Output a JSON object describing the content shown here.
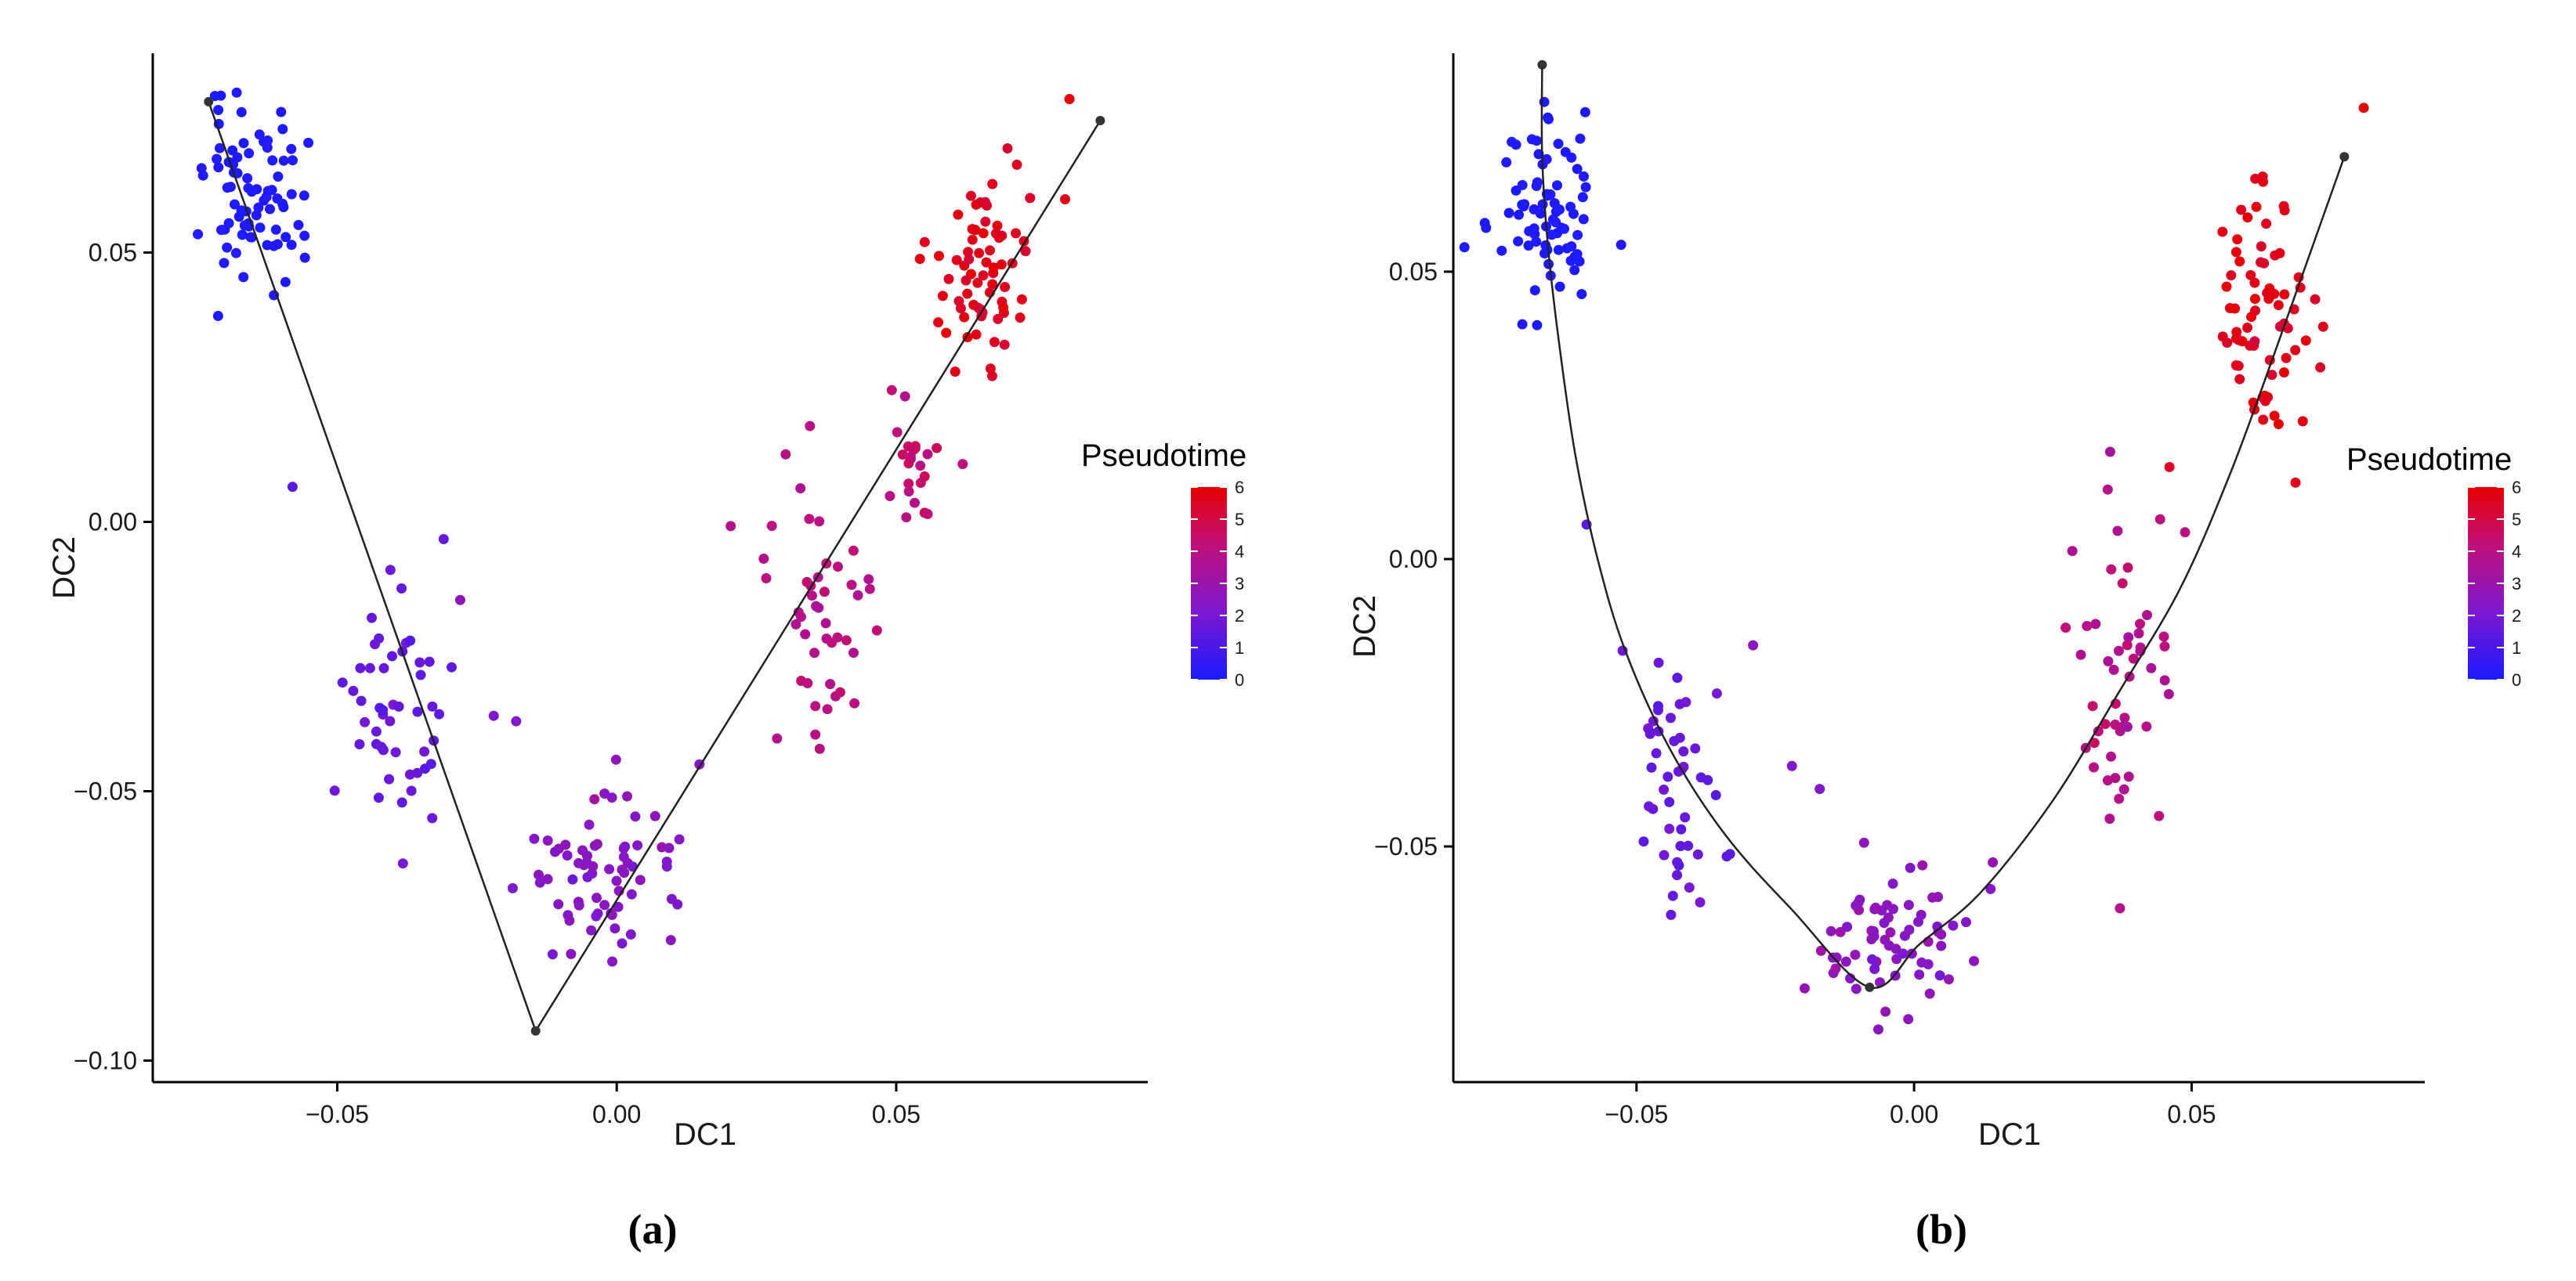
{
  "colors": {
    "low": "#1a1aff",
    "mid": "#8a14c8",
    "high": "#e60000",
    "curve": "#222222",
    "node": "#333333"
  },
  "chart_data": [
    {
      "type": "scatter",
      "panel_label": "(a)",
      "xlabel": "DC1",
      "ylabel": "DC2",
      "xlim": [
        -0.083,
        0.095
      ],
      "ylim": [
        -0.104,
        0.087
      ],
      "x_ticks": [
        -0.05,
        0.0,
        0.05
      ],
      "x_tick_labels": [
        "−0.05",
        "0.00",
        "0.05"
      ],
      "y_ticks": [
        -0.1,
        -0.05,
        0.0,
        0.05
      ],
      "y_tick_labels": [
        "−0.10",
        "−0.05",
        "0.00",
        "0.05"
      ],
      "grid": false,
      "legend": {
        "title": "Pseudotime",
        "min": 0,
        "max": 6,
        "ticks": [
          "0",
          "1",
          "2",
          "3",
          "4",
          "5",
          "6"
        ],
        "placement": "right"
      },
      "trajectory": {
        "kind": "polyline",
        "nodes": [
          [
            -0.073,
            0.078
          ],
          [
            -0.0145,
            -0.0945
          ],
          [
            0.0865,
            0.0745
          ]
        ]
      },
      "clusters": [
        {
          "cx": -0.065,
          "cy": 0.061,
          "sx": 0.0045,
          "sy": 0.008,
          "n": 80,
          "pt": 0.1,
          "pt_sd": 0.05
        },
        {
          "cx": -0.039,
          "cy": -0.034,
          "sx": 0.0045,
          "sy": 0.011,
          "n": 48,
          "pt": 1.6,
          "pt_sd": 0.2
        },
        {
          "cx": -0.003,
          "cy": -0.066,
          "sx": 0.0075,
          "sy": 0.007,
          "n": 70,
          "pt": 2.4,
          "pt_sd": 0.25
        },
        {
          "cx": 0.036,
          "cy": -0.018,
          "sx": 0.0045,
          "sy": 0.012,
          "n": 46,
          "pt": 3.9,
          "pt_sd": 0.25
        },
        {
          "cx": 0.053,
          "cy": 0.014,
          "sx": 0.0035,
          "sy": 0.007,
          "n": 24,
          "pt": 4.4,
          "pt_sd": 0.25
        },
        {
          "cx": 0.066,
          "cy": 0.049,
          "sx": 0.0045,
          "sy": 0.01,
          "n": 70,
          "pt": 5.6,
          "pt_sd": 0.2
        }
      ],
      "outliers": [
        {
          "x": -0.058,
          "y": 0.0065,
          "pt": 1.4
        },
        {
          "x": -0.028,
          "y": -0.0145,
          "pt": 2.6
        },
        {
          "x": -0.022,
          "y": -0.036,
          "pt": 2.1
        },
        {
          "x": -0.018,
          "y": -0.037,
          "pt": 2.2
        },
        {
          "x": 0.081,
          "y": 0.0785,
          "pt": 5.9
        },
        {
          "x": -0.033,
          "y": -0.055,
          "pt": 1.7
        }
      ],
      "seed": 11
    },
    {
      "type": "scatter",
      "panel_label": "(b)",
      "xlabel": "DC1",
      "ylabel": "DC2",
      "xlim": [
        -0.083,
        0.092
      ],
      "ylim": [
        -0.091,
        0.088
      ],
      "x_ticks": [
        -0.05,
        0.0,
        0.05
      ],
      "x_tick_labels": [
        "−0.05",
        "0.00",
        "0.05"
      ],
      "y_ticks": [
        -0.05,
        0.0,
        0.05
      ],
      "y_tick_labels": [
        "−0.05",
        "0.00",
        "0.05"
      ],
      "grid": false,
      "legend": {
        "title": "Pseudotime",
        "min": 0,
        "max": 6,
        "ticks": [
          "0",
          "1",
          "2",
          "3",
          "4",
          "5",
          "6"
        ],
        "placement": "right"
      },
      "trajectory": {
        "kind": "curve",
        "nodes": [
          [
            -0.067,
            0.086
          ],
          [
            -0.067,
            0.07
          ],
          [
            -0.066,
            0.055
          ],
          [
            -0.064,
            0.038
          ],
          [
            -0.061,
            0.018
          ],
          [
            -0.057,
            0.0
          ],
          [
            -0.052,
            -0.016
          ],
          [
            -0.044,
            -0.033
          ],
          [
            -0.034,
            -0.048
          ],
          [
            -0.022,
            -0.061
          ],
          [
            -0.008,
            -0.0745
          ],
          [
            0.001,
            -0.067
          ],
          [
            0.012,
            -0.058
          ],
          [
            0.025,
            -0.042
          ],
          [
            0.037,
            -0.023
          ],
          [
            0.048,
            -0.005
          ],
          [
            0.057,
            0.015
          ],
          [
            0.065,
            0.036
          ],
          [
            0.072,
            0.055
          ],
          [
            0.0775,
            0.07
          ]
        ],
        "endpoints": [
          [
            -0.067,
            0.086
          ],
          [
            -0.008,
            -0.0745
          ],
          [
            0.0775,
            0.07
          ]
        ]
      },
      "clusters": [
        {
          "cx": -0.066,
          "cy": 0.06,
          "sx": 0.0045,
          "sy": 0.008,
          "n": 80,
          "pt": 0.1,
          "pt_sd": 0.05
        },
        {
          "cx": -0.042,
          "cy": -0.037,
          "sx": 0.0045,
          "sy": 0.012,
          "n": 48,
          "pt": 1.7,
          "pt_sd": 0.2
        },
        {
          "cx": -0.004,
          "cy": -0.065,
          "sx": 0.007,
          "sy": 0.007,
          "n": 70,
          "pt": 2.5,
          "pt_sd": 0.25
        },
        {
          "cx": 0.038,
          "cy": -0.018,
          "sx": 0.005,
          "sy": 0.014,
          "n": 52,
          "pt": 3.9,
          "pt_sd": 0.3
        },
        {
          "cx": 0.063,
          "cy": 0.042,
          "sx": 0.0045,
          "sy": 0.012,
          "n": 72,
          "pt": 5.6,
          "pt_sd": 0.2
        }
      ],
      "outliers": [
        {
          "x": -0.059,
          "y": 0.006,
          "pt": 1.4
        },
        {
          "x": -0.029,
          "y": -0.015,
          "pt": 2.6
        },
        {
          "x": -0.022,
          "y": -0.036,
          "pt": 2.1
        },
        {
          "x": -0.017,
          "y": -0.04,
          "pt": 2.2
        },
        {
          "x": 0.081,
          "y": 0.0785,
          "pt": 5.9
        },
        {
          "x": 0.046,
          "y": 0.016,
          "pt": 5.5
        }
      ],
      "seed": 29
    }
  ]
}
